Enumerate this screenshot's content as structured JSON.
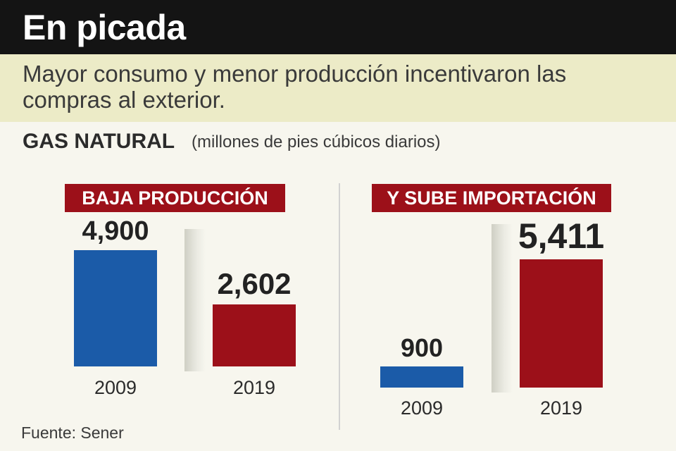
{
  "title": "En picada",
  "subtitle": "Mayor consumo y menor  producción incentivaron las compras al exterior.",
  "section_label": "GAS NATURAL",
  "units": "(millones de pies cúbicos diarios)",
  "source": "Fuente: Sener",
  "colors": {
    "blue": "#1b5ba8",
    "red": "#9c1019",
    "header": "#141414",
    "subtitle_band": "#ecebc7"
  },
  "chart_data": [
    {
      "type": "bar",
      "title": "BAJA PRODUCCIÓN",
      "categories": [
        "2009",
        "2019"
      ],
      "values": [
        4900,
        2602
      ],
      "value_labels": [
        "4,900",
        "2,602"
      ],
      "bar_colors": [
        "#1b5ba8",
        "#9c1019"
      ]
    },
    {
      "type": "bar",
      "title": "Y SUBE IMPORTACIÓN",
      "categories": [
        "2009",
        "2019"
      ],
      "values": [
        900,
        5411
      ],
      "value_labels": [
        "900",
        "5,411"
      ],
      "bar_colors": [
        "#1b5ba8",
        "#9c1019"
      ]
    }
  ]
}
